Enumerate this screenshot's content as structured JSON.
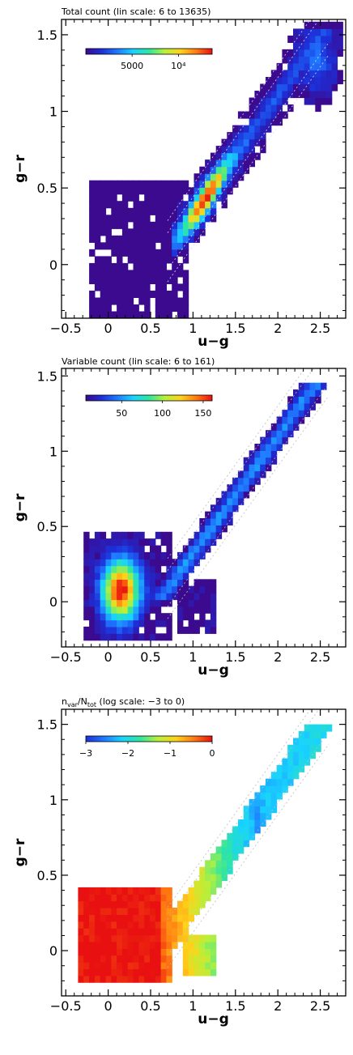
{
  "chart_data": [
    {
      "type": "heatmap",
      "title": "Total count (lin scale: 6 to 13635)",
      "xlabel": "u−g",
      "ylabel": "g−r",
      "xlim": [
        -0.55,
        2.8
      ],
      "ylim": [
        -0.35,
        1.6
      ],
      "xticks": [
        -0.5,
        0,
        0.5,
        1,
        1.5,
        2,
        2.5
      ],
      "xtick_labels": [
        "−0.5",
        "0",
        "0.5",
        "1",
        "1.5",
        "2",
        "2.5"
      ],
      "yticks": [
        0,
        0.5,
        1,
        1.5
      ],
      "ytick_labels": [
        "0",
        "0.5",
        "1",
        "1.5"
      ],
      "colorbar": {
        "scale": "linear",
        "range": [
          6,
          13635
        ],
        "ticks": [
          5000,
          10000
        ],
        "tick_labels": [
          "5000",
          "10⁴"
        ]
      },
      "colormap": [
        "#3b0a8f",
        "#1d2fd8",
        "#1f7aff",
        "#19d3ff",
        "#2ee6a0",
        "#b8f03a",
        "#ffd21a",
        "#ff7a12",
        "#e81010"
      ],
      "contours": "dotted white density contours"
    },
    {
      "type": "heatmap",
      "title": "Variable count (lin scale: 6 to 161)",
      "xlabel": "u−g",
      "ylabel": "g−r",
      "xlim": [
        -0.55,
        2.8
      ],
      "ylim": [
        -0.3,
        1.55
      ],
      "xticks": [
        -0.5,
        0,
        0.5,
        1,
        1.5,
        2,
        2.5
      ],
      "xtick_labels": [
        "−0.5",
        "0",
        "0.5",
        "1",
        "1.5",
        "2",
        "2.5"
      ],
      "yticks": [
        0,
        0.5,
        1,
        1.5
      ],
      "ytick_labels": [
        "0",
        "0.5",
        "1",
        "1.5"
      ],
      "colorbar": {
        "scale": "linear",
        "range": [
          6,
          161
        ],
        "ticks": [
          50,
          100,
          150
        ],
        "tick_labels": [
          "50",
          "100",
          "150"
        ]
      },
      "colormap": [
        "#3b0a8f",
        "#1d2fd8",
        "#1f7aff",
        "#19d3ff",
        "#2ee6a0",
        "#b8f03a",
        "#ffd21a",
        "#ff7a12",
        "#e81010"
      ],
      "contours": "dotted white density contours"
    },
    {
      "type": "heatmap",
      "title_parts": [
        "n",
        "var",
        "/N",
        "tot",
        " (log scale: −3 to 0)"
      ],
      "xlabel": "u−g",
      "ylabel": "g−r",
      "xlim": [
        -0.55,
        2.8
      ],
      "ylim": [
        -0.3,
        1.6
      ],
      "xticks": [
        -0.5,
        0,
        0.5,
        1,
        1.5,
        2,
        2.5
      ],
      "xtick_labels": [
        "−0.5",
        "0",
        "0.5",
        "1",
        "1.5",
        "2",
        "2.5"
      ],
      "yticks": [
        0,
        0.5,
        1,
        1.5
      ],
      "ytick_labels": [
        "0",
        "0.5",
        "1",
        "1.5"
      ],
      "colorbar": {
        "scale": "log",
        "range": [
          -3,
          0
        ],
        "ticks": [
          -3,
          -2,
          -1,
          0
        ],
        "tick_labels": [
          "−3",
          "−2",
          "−1",
          "0"
        ]
      },
      "colormap": [
        "#1d2fd8",
        "#1f7aff",
        "#19d3ff",
        "#2ee6a0",
        "#b8f03a",
        "#ffd21a",
        "#ff7a12",
        "#e81010"
      ],
      "contours": "dotted white density contours"
    }
  ]
}
